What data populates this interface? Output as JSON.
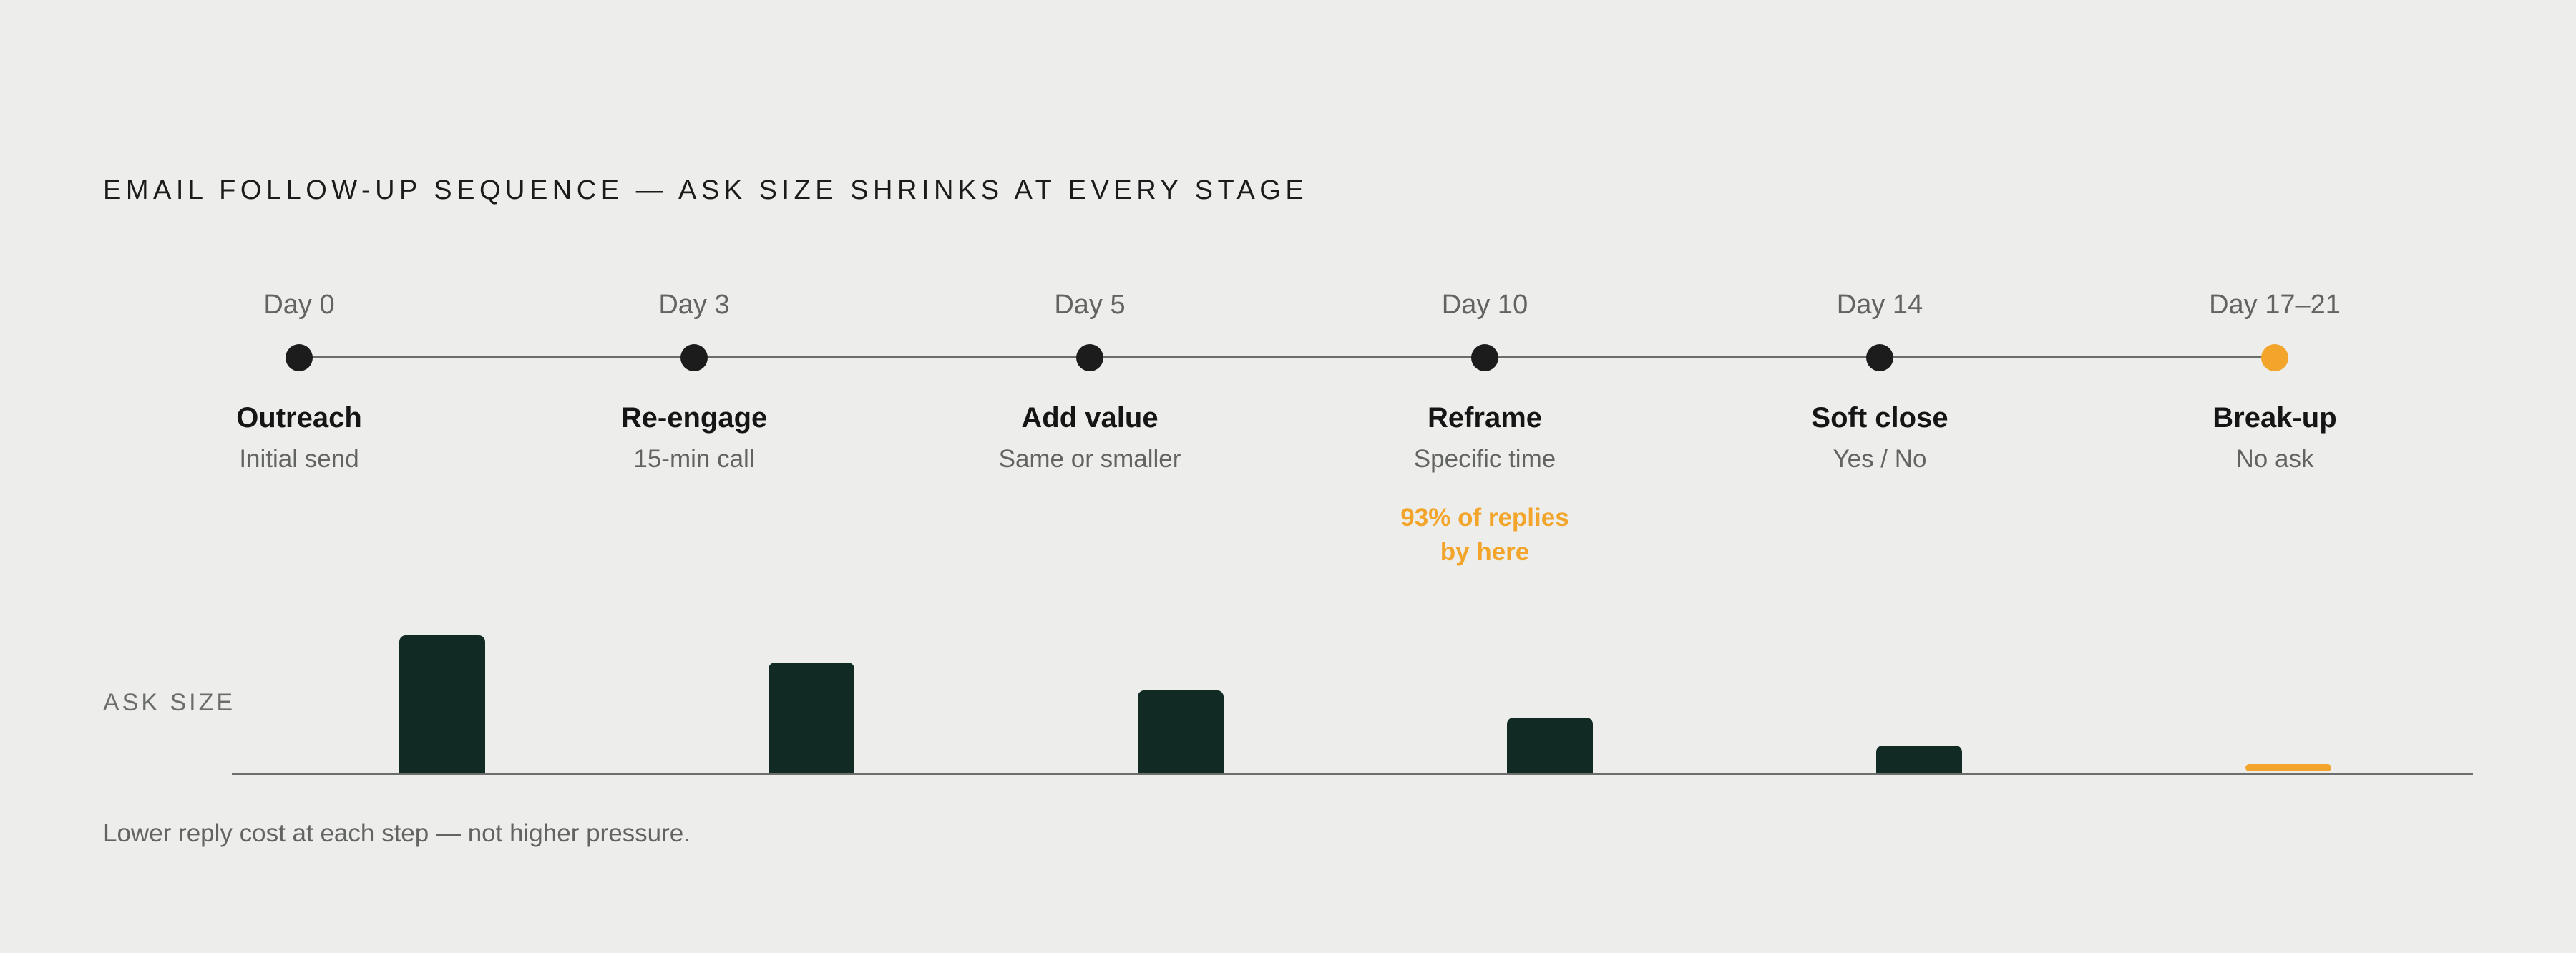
{
  "title": "EMAIL FOLLOW-UP SEQUENCE — ASK SIZE SHRINKS AT EVERY STAGE",
  "stages": [
    {
      "day": "Day 0",
      "name": "Outreach",
      "sub": "Initial send"
    },
    {
      "day": "Day 3",
      "name": "Re-engage",
      "sub": "15-min call"
    },
    {
      "day": "Day 5",
      "name": "Add value",
      "sub": "Same or smaller"
    },
    {
      "day": "Day 10",
      "name": "Reframe",
      "sub": "Specific time"
    },
    {
      "day": "Day 14",
      "name": "Soft close",
      "sub": "Yes / No"
    },
    {
      "day": "Day 17–21",
      "name": "Break-up",
      "sub": "No ask"
    }
  ],
  "callout": {
    "line1": "93% of replies",
    "line2": "by here"
  },
  "ask_label": "ASK SIZE",
  "footnote": "Lower reply cost at each step — not higher pressure.",
  "chart_data": {
    "type": "bar",
    "categories": [
      "Outreach",
      "Re-engage",
      "Add value",
      "Reframe",
      "Soft close",
      "Break-up"
    ],
    "values": [
      5,
      4,
      3,
      2,
      1,
      0.25
    ],
    "ylabel": "ASK SIZE",
    "ylim": [
      0,
      5
    ]
  },
  "colors": {
    "background": "#edeeeb",
    "bar": "#112a24",
    "accent": "#f2a52a",
    "dot": "#1b1c1b"
  }
}
